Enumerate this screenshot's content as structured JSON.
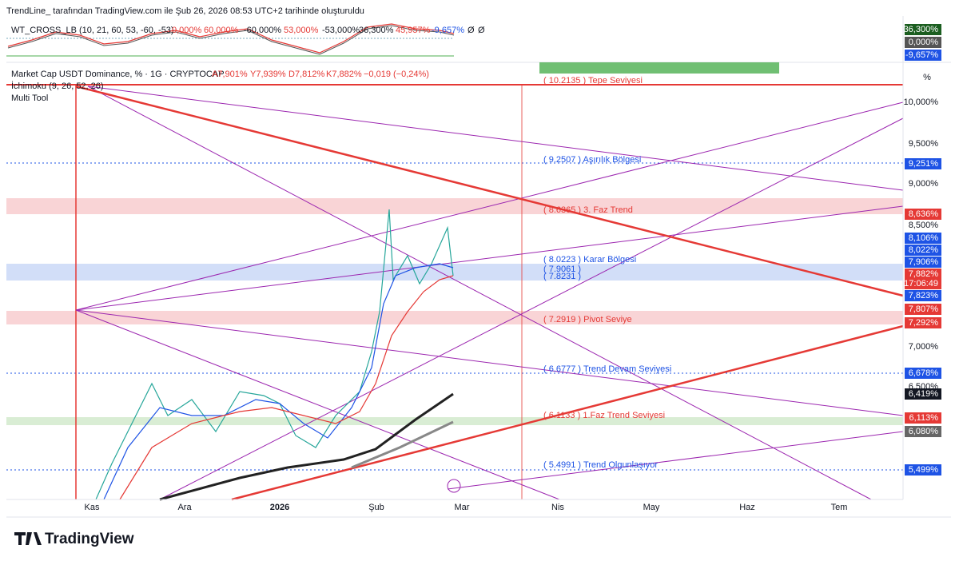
{
  "header": {
    "attribution": "TrendLine_ tarafından TradingView.com ile Şub 26, 2026 08:53 UTC+2 tarihinde oluşturuldu"
  },
  "indicator": {
    "label": "WT_CROSS_LB (10, 21, 60, 53, -60, -53)",
    "values": [
      "0,000%",
      "60,000%",
      "-60,000%",
      "53,000%",
      "-53,000%",
      "36,300%",
      "45,957%",
      "-9,657%",
      "Ø",
      "Ø"
    ],
    "axis_labels": [
      "36,300%",
      "0,000%",
      "-9,657%"
    ]
  },
  "legend": {
    "symbol": "Market Cap USDT Dominance, % · 1G · CRYPTOCAP",
    "open": "A7,901%",
    "high": "Y7,939%",
    "low": "D7,812%",
    "close": "K7,882%",
    "change": "−0,019 (−0,24%)",
    "studies": [
      "İchimoku (9, 26, 52, 26)",
      "Multi Tool"
    ]
  },
  "levels": [
    "( 10.2135 ) Tepe Seviyesi",
    "( 9.2507 ) Aşırılık Bölgesi",
    "( 8.6365 ) 3. Faz Trend",
    "( 8.0223 ) Karar Bölgesi",
    "( 7.9061 )",
    "( 7.8231 )",
    "( 7.2919 ) Pivot Seviye",
    "( 6.6777 ) Trend Devam Seviyesi",
    "( 6.1133 ) 1.Faz Trend Seviyesi",
    "( 5.4991 ) Trend Olgunlaşıyor"
  ],
  "price_axis": {
    "unit": "%",
    "ticks": [
      "10,000%",
      "9,500%",
      "9,000%",
      "8,500%",
      "7,000%",
      "6,500%"
    ],
    "labels": [
      "9,251%",
      "8,636%",
      "8,106%",
      "8,022%",
      "7,906%",
      "7,882%",
      "17:06:49",
      "7,823%",
      "7,807%",
      "7,292%",
      "6,678%",
      "6,419%",
      "6,113%",
      "6,080%",
      "5,499%"
    ]
  },
  "time_axis": [
    "Kas",
    "Ara",
    "2026",
    "Şub",
    "Mar",
    "Nis",
    "May",
    "Haz",
    "Tem"
  ],
  "footer": {
    "brand": "TradingView"
  }
}
